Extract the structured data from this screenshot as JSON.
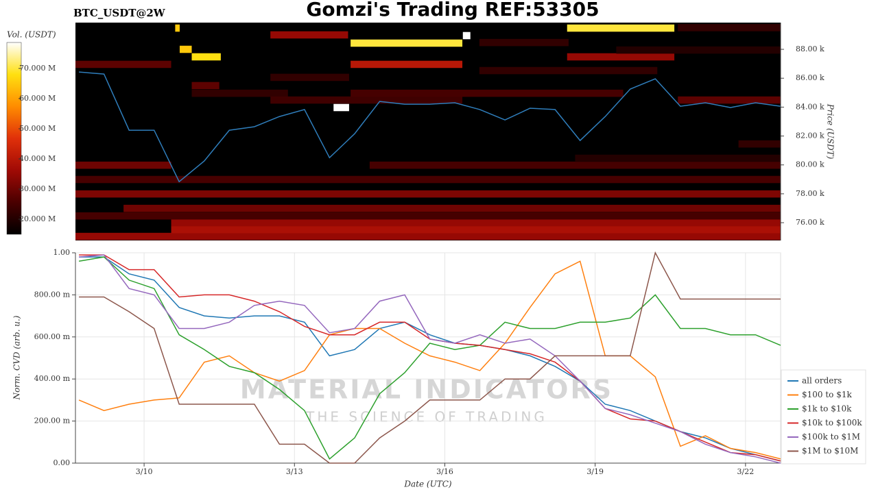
{
  "header": {
    "title": "Gomzi's Trading REF:53305",
    "symbol": "BTC_USDT@2W"
  },
  "chart_data": [
    {
      "type": "heatmap",
      "ylabel": "Price (USDT)",
      "colorbar_label": "Vol. (USDT)",
      "xlim": [
        8.63,
        22.7
      ],
      "ylim": [
        74770,
        89850
      ],
      "yticks": [
        {
          "value": 76000,
          "label": "76.00 k"
        },
        {
          "value": 78000,
          "label": "78.00 k"
        },
        {
          "value": 80000,
          "label": "80.00 k"
        },
        {
          "value": 82000,
          "label": "82.00 k"
        },
        {
          "value": 84000,
          "label": "84.00 k"
        },
        {
          "value": 86000,
          "label": "86.00 k"
        },
        {
          "value": 88000,
          "label": "88.00 k"
        }
      ],
      "clim": [
        15000000,
        78600000
      ],
      "cticks": [
        {
          "value": 20000000,
          "label": "20.000 M"
        },
        {
          "value": 30000000,
          "label": "30.000 M"
        },
        {
          "value": 40000000,
          "label": "40.000 M"
        },
        {
          "value": 50000000,
          "label": "50.000 M"
        },
        {
          "value": 60000000,
          "label": "60.000 M"
        },
        {
          "value": 70000000,
          "label": "70.000 M"
        }
      ],
      "colorscale": [
        "#000000",
        "#4a0000",
        "#a00a05",
        "#e0300a",
        "#ff8c00",
        "#ffe010",
        "#ffffff"
      ],
      "cells": [
        {
          "x": [
            18.44,
            20.58
          ],
          "price": [
            89220,
            89720
          ],
          "volume": 70000000
        },
        {
          "x": [
            14.12,
            16.35
          ],
          "price": [
            88180,
            88680
          ],
          "volume": 70000000
        },
        {
          "x": [
            16.36,
            16.51
          ],
          "price": [
            88700,
            89200
          ],
          "volume": 80000000
        },
        {
          "x": [
            13.78,
            14.09
          ],
          "price": [
            83720,
            84220
          ],
          "volume": 80000000
        },
        {
          "x": [
            10.95,
            11.53
          ],
          "price": [
            87230,
            87730
          ],
          "volume": 68000000
        },
        {
          "x": [
            10.71,
            10.95
          ],
          "price": [
            87750,
            88250
          ],
          "volume": 65000000
        },
        {
          "x": [
            10.62,
            10.71
          ],
          "price": [
            89220,
            89720
          ],
          "volume": 65000000
        },
        {
          "x": [
            12.52,
            14.07
          ],
          "price": [
            88750,
            89250
          ],
          "volume": 35000000
        },
        {
          "x": [
            14.12,
            16.35
          ],
          "price": [
            86710,
            87210
          ],
          "volume": 40000000
        },
        {
          "x": [
            18.44,
            20.58
          ],
          "price": [
            87230,
            87730
          ],
          "volume": 35000000
        },
        {
          "x": [
            8.63,
            10.54
          ],
          "price": [
            86710,
            87210
          ],
          "volume": 28000000
        },
        {
          "x": [
            8.63,
            22.7
          ],
          "price": [
            74800,
            75300
          ],
          "volume": 35000000
        },
        {
          "x": [
            10.54,
            22.7
          ],
          "price": [
            75270,
            75770
          ],
          "volume": 38000000
        },
        {
          "x": [
            10.54,
            22.7
          ],
          "price": [
            75750,
            76250
          ],
          "volume": 35000000
        },
        {
          "x": [
            8.63,
            22.7
          ],
          "price": [
            76220,
            76720
          ],
          "volume": 25000000
        },
        {
          "x": [
            9.59,
            22.7
          ],
          "price": [
            76740,
            77240
          ],
          "volume": 30000000
        },
        {
          "x": [
            8.63,
            22.7
          ],
          "price": [
            77740,
            78240
          ],
          "volume": 32000000
        },
        {
          "x": [
            8.63,
            22.7
          ],
          "price": [
            78740,
            79240
          ],
          "volume": 25000000
        },
        {
          "x": [
            8.63,
            10.54
          ],
          "price": [
            79730,
            80230
          ],
          "volume": 30000000
        },
        {
          "x": [
            14.5,
            22.7
          ],
          "price": [
            79730,
            80230
          ],
          "volume": 25000000
        },
        {
          "x": [
            21.86,
            22.7
          ],
          "price": [
            81200,
            81700
          ],
          "volume": 22000000
        },
        {
          "x": [
            10.95,
            12.87
          ],
          "price": [
            84710,
            85210
          ],
          "volume": 22000000
        },
        {
          "x": [
            10.95,
            11.5
          ],
          "price": [
            85240,
            85740
          ],
          "volume": 28000000
        },
        {
          "x": [
            12.52,
            16.35
          ],
          "price": [
            84240,
            84740
          ],
          "volume": 24000000
        },
        {
          "x": [
            14.12,
            19.56
          ],
          "price": [
            84710,
            85210
          ],
          "volume": 25000000
        },
        {
          "x": [
            16.69,
            20.24
          ],
          "price": [
            86280,
            86780
          ],
          "volume": 22000000
        },
        {
          "x": [
            12.52,
            14.09
          ],
          "price": [
            85810,
            86310
          ],
          "volume": 22000000
        },
        {
          "x": [
            19.42,
            22.7
          ],
          "price": [
            87700,
            88200
          ],
          "volume": 20000000
        },
        {
          "x": [
            16.69,
            18.47
          ],
          "price": [
            88220,
            88720
          ],
          "volume": 22000000
        },
        {
          "x": [
            20.65,
            22.7
          ],
          "price": [
            84240,
            84740
          ],
          "volume": 28000000
        },
        {
          "x": [
            18.6,
            22.7
          ],
          "price": [
            80210,
            80710
          ],
          "volume": 20000000
        },
        {
          "x": [
            20.65,
            22.7
          ],
          "price": [
            89250,
            89750
          ],
          "volume": 22000000
        }
      ],
      "x": [
        8.7,
        9.2,
        9.7,
        10.2,
        10.7,
        11.2,
        11.7,
        12.2,
        12.7,
        13.2,
        13.7,
        14.2,
        14.7,
        15.2,
        15.7,
        16.2,
        16.7,
        17.2,
        17.7,
        18.2,
        18.7,
        19.2,
        19.7,
        20.2,
        20.7,
        21.2,
        21.7,
        22.2,
        22.7
      ],
      "price_color": "#2f7ebc",
      "values": [
        86430,
        86290,
        82400,
        82400,
        78840,
        80270,
        82400,
        82640,
        83350,
        83830,
        80500,
        82160,
        84390,
        84200,
        84200,
        84300,
        83830,
        83110,
        83920,
        83830,
        81690,
        83350,
        85250,
        85960,
        84060,
        84300,
        83970,
        84300,
        84060
      ]
    },
    {
      "type": "line",
      "xlabel": "Date (UTC)",
      "ylabel": "Norm. CVD (arb. u.)",
      "watermark": [
        "MATERIAL INDICATORS",
        "THE SCIENCE OF TRADING"
      ],
      "legend": "right",
      "grid": true,
      "xlim": [
        8.63,
        22.7
      ],
      "ylim": [
        0,
        1
      ],
      "xticks": [
        {
          "value": 10,
          "label": "3/10"
        },
        {
          "value": 13,
          "label": "3/13"
        },
        {
          "value": 16,
          "label": "3/16"
        },
        {
          "value": 19,
          "label": "3/19"
        },
        {
          "value": 22,
          "label": "3/22"
        }
      ],
      "yticks": [
        {
          "value": 0,
          "label": "0.00"
        },
        {
          "value": 0.2,
          "label": "200.00 m"
        },
        {
          "value": 0.4,
          "label": "400.00 m"
        },
        {
          "value": 0.6,
          "label": "600.00 m"
        },
        {
          "value": 0.8,
          "label": "800.00 m"
        },
        {
          "value": 1,
          "label": "1.00"
        }
      ],
      "x": [
        8.7,
        9.2,
        9.7,
        10.2,
        10.7,
        11.2,
        11.7,
        12.2,
        12.7,
        13.2,
        13.7,
        14.2,
        14.7,
        15.2,
        15.7,
        16.2,
        16.7,
        17.2,
        17.7,
        18.2,
        18.7,
        19.2,
        19.7,
        20.2,
        20.7,
        21.2,
        21.7,
        22.2,
        22.7
      ],
      "series": [
        {
          "name": "all orders",
          "color": "#1f77b4",
          "values": [
            0.98,
            0.98,
            0.9,
            0.87,
            0.74,
            0.7,
            0.69,
            0.7,
            0.7,
            0.67,
            0.51,
            0.54,
            0.64,
            0.67,
            0.61,
            0.57,
            0.56,
            0.54,
            0.51,
            0.46,
            0.39,
            0.28,
            0.25,
            0.2,
            0.15,
            0.12,
            0.07,
            0.04,
            0.01
          ]
        },
        {
          "name": "$100 to $1k",
          "color": "#ff7f0e",
          "values": [
            0.3,
            0.25,
            0.28,
            0.3,
            0.31,
            0.48,
            0.51,
            0.43,
            0.39,
            0.44,
            0.61,
            0.64,
            0.64,
            0.57,
            0.51,
            0.48,
            0.44,
            0.57,
            0.74,
            0.9,
            0.96,
            0.51,
            0.51,
            0.41,
            0.08,
            0.13,
            0.07,
            0.05,
            0.02
          ]
        },
        {
          "name": "$1k to $10k",
          "color": "#2ca02c",
          "values": [
            0.96,
            0.98,
            0.87,
            0.83,
            0.61,
            0.54,
            0.46,
            0.43,
            0.35,
            0.25,
            0.02,
            0.12,
            0.33,
            0.43,
            0.57,
            0.54,
            0.56,
            0.67,
            0.64,
            0.64,
            0.67,
            0.67,
            0.69,
            0.8,
            0.64,
            0.64,
            0.61,
            0.61,
            0.56
          ]
        },
        {
          "name": "$10k to $100k",
          "color": "#d62728",
          "values": [
            0.99,
            0.99,
            0.92,
            0.92,
            0.79,
            0.8,
            0.8,
            0.77,
            0.72,
            0.65,
            0.61,
            0.61,
            0.67,
            0.67,
            0.59,
            0.57,
            0.56,
            0.54,
            0.52,
            0.48,
            0.39,
            0.26,
            0.21,
            0.2,
            0.15,
            0.1,
            0.05,
            0.04,
            0.01
          ]
        },
        {
          "name": "$100k to $1M",
          "color": "#9467bd",
          "values": [
            0.98,
            0.99,
            0.83,
            0.8,
            0.64,
            0.64,
            0.67,
            0.75,
            0.77,
            0.75,
            0.62,
            0.64,
            0.77,
            0.8,
            0.59,
            0.57,
            0.61,
            0.57,
            0.59,
            0.51,
            0.39,
            0.26,
            0.23,
            0.19,
            0.15,
            0.09,
            0.05,
            0.03,
            0.0
          ]
        },
        {
          "name": "$1M to $10M",
          "color": "#8c564b",
          "values": [
            0.79,
            0.79,
            0.72,
            0.64,
            0.28,
            0.28,
            0.28,
            0.28,
            0.09,
            0.09,
            0.0,
            0.0,
            0.12,
            0.2,
            0.3,
            0.3,
            0.3,
            0.4,
            0.4,
            0.51,
            0.51,
            0.51,
            0.51,
            1.0,
            0.78,
            0.78,
            0.78,
            0.78,
            0.78
          ]
        }
      ]
    }
  ]
}
